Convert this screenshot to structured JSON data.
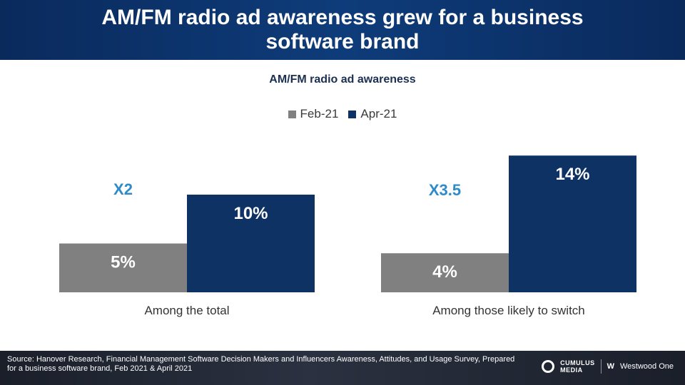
{
  "header": {
    "title": "AM/FM radio ad awareness grew for a business software brand"
  },
  "chart_data": {
    "type": "bar",
    "title": "AM/FM radio ad awareness",
    "categories": [
      "Among the total",
      "Among those likely to switch"
    ],
    "series": [
      {
        "name": "Feb-21",
        "values": [
          5,
          4
        ],
        "labels": [
          "5%",
          "4%"
        ],
        "color": "#808080"
      },
      {
        "name": "Apr-21",
        "values": [
          10,
          14
        ],
        "labels": [
          "10%",
          "14%"
        ],
        "color": "#0d3263"
      }
    ],
    "multipliers": [
      "X2",
      "X3.5"
    ],
    "multiplier_color": "#2e8bc9",
    "ylim": [
      0,
      14
    ],
    "legend_position": "top-center",
    "grid": false
  },
  "footer": {
    "source": "Source: Hanover Research, Financial Management Software Decision Makers and Influencers Awareness, Attitudes, and Usage Survey, Prepared for a business software brand, Feb 2021 & April 2021",
    "logo_cumulus_top": "CUMULUS",
    "logo_cumulus_bottom": "MEDIA",
    "logo_westwood_mark": "W",
    "logo_westwood": "Westwood One"
  }
}
